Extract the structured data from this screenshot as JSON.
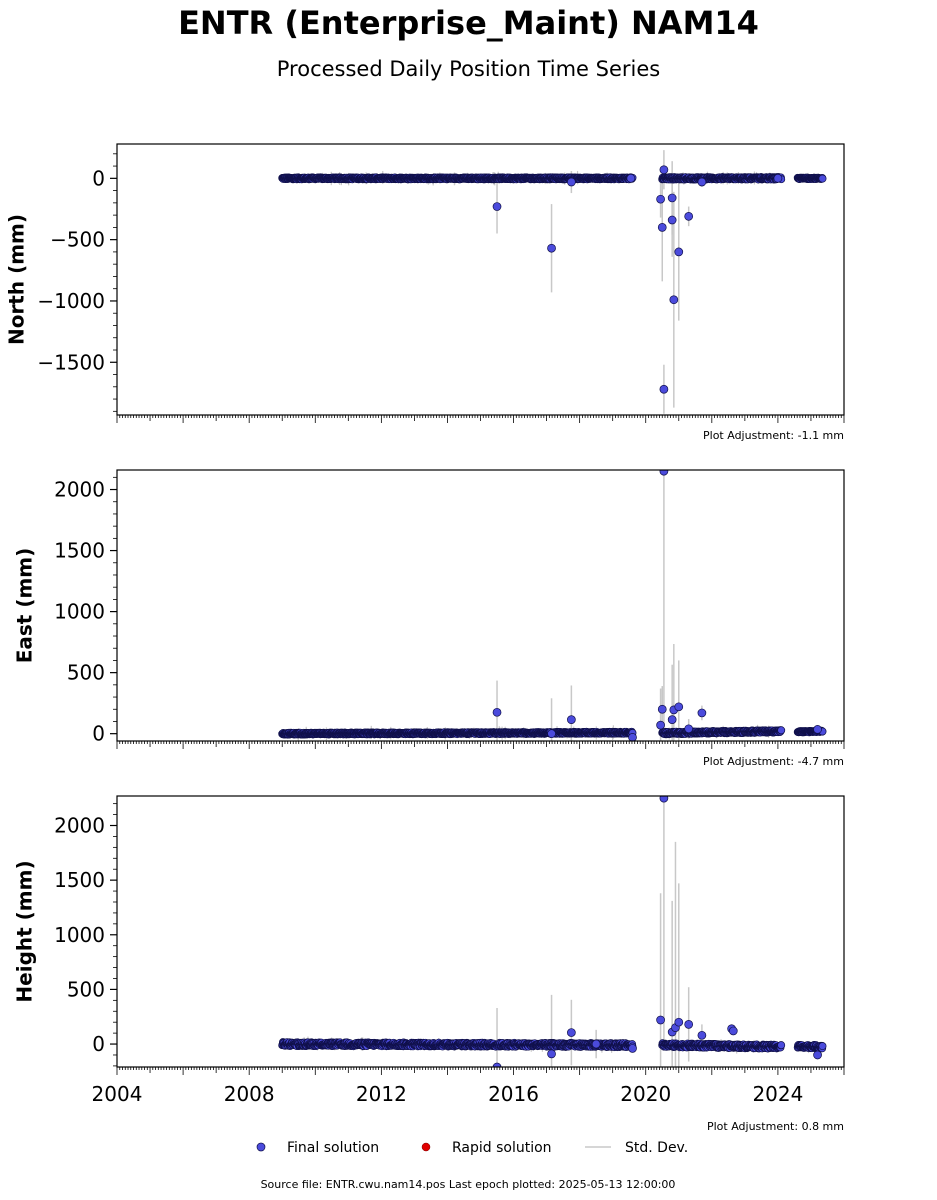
{
  "title": "ENTR (Enterprise_Maint) NAM14",
  "subtitle": "Processed Daily Position Time Series",
  "footer": "Source file: ENTR.cwu.nam14.pos  Last epoch plotted: 2025-05-13 12:00:00",
  "colors": {
    "final": "#4b4bdc",
    "final_edge": "#10104a",
    "rapid": "#e00000",
    "stddev": "#c8c8c8"
  },
  "legend": [
    {
      "name": "final",
      "label": "Final solution"
    },
    {
      "name": "rapid",
      "label": "Rapid solution"
    },
    {
      "name": "stddev",
      "label": "Std. Dev."
    }
  ],
  "chart_data": [
    {
      "type": "scatter",
      "ylabel": "North (mm)",
      "adjustment": "Plot Adjustment: -1.1 mm",
      "xlim": [
        2004,
        2026
      ],
      "ylim": [
        -1930,
        280
      ],
      "yticks": [
        0,
        -500,
        -1000,
        -1500
      ],
      "ytick_labels": [
        "0",
        "−500",
        "−1000",
        "−1500"
      ],
      "yminor_step": 100,
      "segments": [
        {
          "x0": 2009.0,
          "x1": 2019.6,
          "amp": 8,
          "y0": 0,
          "y1": 0
        },
        {
          "x0": 2020.5,
          "x1": 2024.1,
          "amp": 10,
          "y0": 0,
          "y1": 0
        },
        {
          "x0": 2024.6,
          "x1": 2025.35,
          "amp": 6,
          "y0": 0,
          "y1": 0
        }
      ],
      "outliers": [
        [
          2015.5,
          -230,
          220
        ],
        [
          2017.15,
          -570,
          360
        ],
        [
          2017.75,
          -30,
          90
        ],
        [
          2019.55,
          0,
          40
        ],
        [
          2020.45,
          -170,
          150
        ],
        [
          2020.5,
          -400,
          440
        ],
        [
          2020.55,
          70,
          160
        ],
        [
          2020.55,
          -1720,
          200
        ],
        [
          2020.8,
          -160,
          300
        ],
        [
          2020.8,
          -340,
          300
        ],
        [
          2020.85,
          -990,
          880
        ],
        [
          2021.0,
          -600,
          560
        ],
        [
          2021.3,
          -310,
          80
        ],
        [
          2021.7,
          -30,
          40
        ],
        [
          2024.0,
          0,
          30
        ]
      ]
    },
    {
      "type": "scatter",
      "ylabel": "East (mm)",
      "adjustment": "Plot Adjustment: -4.7 mm",
      "xlim": [
        2004,
        2026
      ],
      "ylim": [
        -60,
        2160
      ],
      "yticks": [
        0,
        500,
        1000,
        1500,
        2000
      ],
      "ytick_labels": [
        "0",
        "500",
        "1000",
        "1500",
        "2000"
      ],
      "yminor_step": 100,
      "segments": [
        {
          "x0": 2009.0,
          "x1": 2019.6,
          "amp": 8,
          "y0": 0,
          "y1": 8
        },
        {
          "x0": 2020.5,
          "x1": 2024.1,
          "amp": 10,
          "y0": 5,
          "y1": 20
        },
        {
          "x0": 2024.6,
          "x1": 2025.35,
          "amp": 6,
          "y0": 15,
          "y1": 20
        }
      ],
      "outliers": [
        [
          2015.5,
          175,
          260
        ],
        [
          2017.15,
          0,
          290
        ],
        [
          2017.75,
          115,
          280
        ],
        [
          2019.6,
          -30,
          40
        ],
        [
          2020.45,
          70,
          300
        ],
        [
          2020.5,
          200,
          190
        ],
        [
          2020.55,
          2150,
          2100
        ],
        [
          2020.8,
          115,
          450
        ],
        [
          2020.85,
          195,
          540
        ],
        [
          2021.0,
          220,
          380
        ],
        [
          2021.3,
          40,
          80
        ],
        [
          2021.7,
          170,
          60
        ],
        [
          2025.2,
          35,
          30
        ]
      ]
    },
    {
      "type": "scatter",
      "ylabel": "Height (mm)",
      "adjustment": "Plot Adjustment: 0.8 mm",
      "xlim": [
        2004,
        2026
      ],
      "ylim": [
        -210,
        2270
      ],
      "yticks": [
        0,
        500,
        1000,
        1500,
        2000
      ],
      "ytick_labels": [
        "0",
        "500",
        "1000",
        "1500",
        "2000"
      ],
      "yminor_step": 100,
      "xticks": [
        2004,
        2008,
        2012,
        2016,
        2020,
        2024
      ],
      "xtick_labels": [
        "2004",
        "2008",
        "2012",
        "2016",
        "2020",
        "2024"
      ],
      "segments": [
        {
          "x0": 2009.0,
          "x1": 2019.6,
          "amp": 18,
          "y0": 0,
          "y1": -10
        },
        {
          "x0": 2020.5,
          "x1": 2024.1,
          "amp": 18,
          "y0": -10,
          "y1": -25
        },
        {
          "x0": 2024.6,
          "x1": 2025.35,
          "amp": 15,
          "y0": -20,
          "y1": -25
        }
      ],
      "outliers": [
        [
          2015.5,
          -210,
          540
        ],
        [
          2017.15,
          -90,
          540
        ],
        [
          2017.75,
          105,
          300
        ],
        [
          2018.5,
          0,
          130
        ],
        [
          2019.6,
          -40,
          40
        ],
        [
          2020.45,
          220,
          1160
        ],
        [
          2020.55,
          2250,
          2250
        ],
        [
          2020.8,
          110,
          1200
        ],
        [
          2020.9,
          150,
          1700
        ],
        [
          2021.0,
          200,
          1270
        ],
        [
          2021.3,
          180,
          340
        ],
        [
          2021.7,
          80,
          100
        ],
        [
          2022.6,
          140,
          40
        ],
        [
          2022.65,
          120,
          40
        ],
        [
          2025.2,
          -100,
          30
        ]
      ]
    }
  ]
}
